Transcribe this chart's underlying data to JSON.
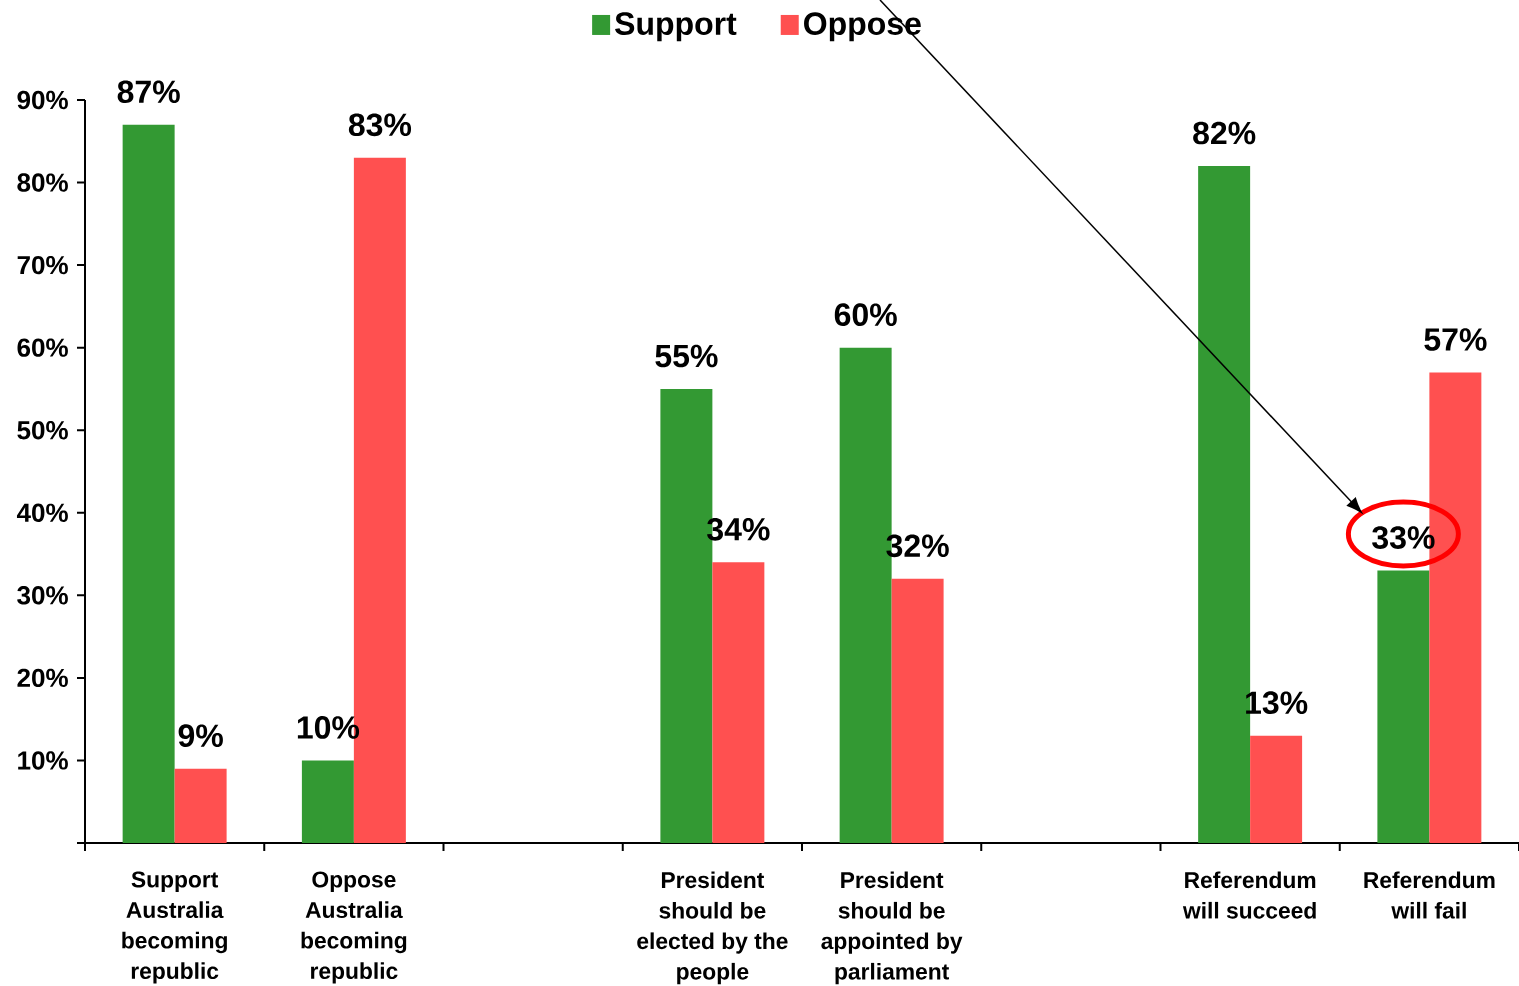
{
  "chart_data": {
    "type": "bar",
    "categories": [
      "Support Australia becoming republic",
      "Oppose Australia becoming republic",
      null,
      "President should be elected by the people",
      "President should be appointed by parliament",
      null,
      "Referendum will succeed",
      "Referendum will fail"
    ],
    "series": [
      {
        "name": "Support",
        "color": "#339933",
        "values": [
          87,
          10,
          null,
          55,
          60,
          null,
          82,
          33
        ],
        "value_labels": [
          "87%",
          "10%",
          null,
          "55%",
          "60%",
          null,
          "82%",
          "33%"
        ]
      },
      {
        "name": "Oppose",
        "color": "#ff5050",
        "values": [
          9,
          83,
          null,
          34,
          32,
          null,
          13,
          57
        ],
        "value_labels": [
          "9%",
          "83%",
          null,
          "34%",
          "32%",
          null,
          "13%",
          "57%"
        ]
      }
    ],
    "ylim": [
      0,
      90
    ],
    "yticks": [
      {
        "value": 0,
        "label": null
      },
      {
        "value": 10,
        "label": "10%"
      },
      {
        "value": 20,
        "label": "20%"
      },
      {
        "value": 30,
        "label": "30%"
      },
      {
        "value": 40,
        "label": "40%"
      },
      {
        "value": 50,
        "label": "50%"
      },
      {
        "value": 60,
        "label": "60%"
      },
      {
        "value": 70,
        "label": "70%"
      },
      {
        "value": 80,
        "label": "80%"
      },
      {
        "value": 90,
        "label": "90%"
      }
    ],
    "legend": "top"
  }
}
